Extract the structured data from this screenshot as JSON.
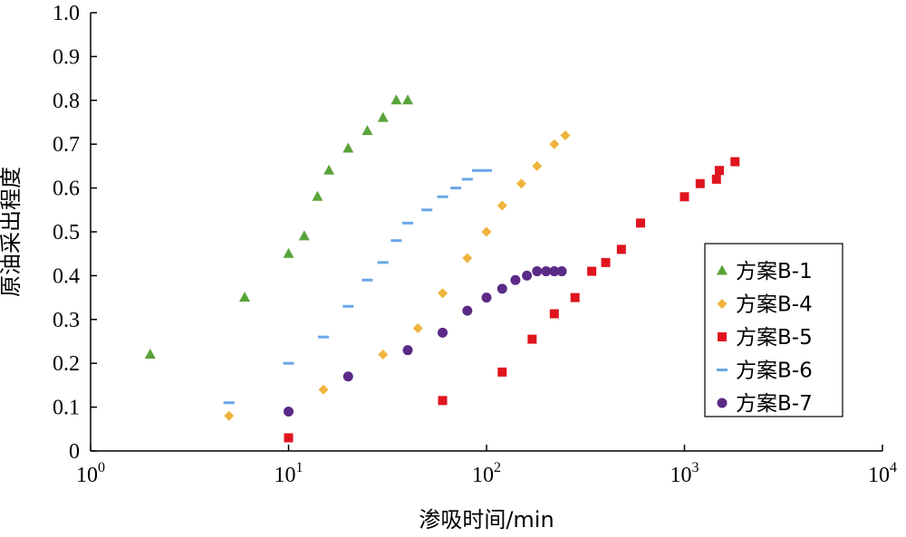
{
  "chart_data": {
    "type": "scatter",
    "xlabel": "渗吸时间/min",
    "ylabel": "原油采出程度",
    "x_scale": "log",
    "xlim": [
      1,
      10000
    ],
    "ylim": [
      0,
      1.0
    ],
    "grid": false,
    "legend_position": "right",
    "x_ticks": [
      {
        "value": 1,
        "base": "10",
        "exp": "0"
      },
      {
        "value": 10,
        "base": "10",
        "exp": "1"
      },
      {
        "value": 100,
        "base": "10",
        "exp": "2"
      },
      {
        "value": 1000,
        "base": "10",
        "exp": "3"
      },
      {
        "value": 10000,
        "base": "10",
        "exp": "4"
      }
    ],
    "y_ticks": [
      {
        "value": 0,
        "label": "0"
      },
      {
        "value": 0.1,
        "label": "0.1"
      },
      {
        "value": 0.2,
        "label": "0.2"
      },
      {
        "value": 0.3,
        "label": "0.3"
      },
      {
        "value": 0.4,
        "label": "0.4"
      },
      {
        "value": 0.5,
        "label": "0.5"
      },
      {
        "value": 0.6,
        "label": "0.6"
      },
      {
        "value": 0.7,
        "label": "0.7"
      },
      {
        "value": 0.8,
        "label": "0.8"
      },
      {
        "value": 0.9,
        "label": "0.9"
      },
      {
        "value": 1.0,
        "label": "1.0"
      }
    ],
    "series": [
      {
        "name": "方案B-1",
        "marker": "triangle",
        "color": "#5aa33a",
        "points": [
          [
            2,
            0.22
          ],
          [
            6,
            0.35
          ],
          [
            10,
            0.45
          ],
          [
            12,
            0.49
          ],
          [
            14,
            0.58
          ],
          [
            16,
            0.64
          ],
          [
            20,
            0.69
          ],
          [
            25,
            0.73
          ],
          [
            30,
            0.76
          ],
          [
            35,
            0.8
          ],
          [
            40,
            0.8
          ]
        ]
      },
      {
        "name": "方案B-4",
        "marker": "diamond",
        "color": "#f0b43c",
        "points": [
          [
            5,
            0.08
          ],
          [
            15,
            0.14
          ],
          [
            30,
            0.22
          ],
          [
            45,
            0.28
          ],
          [
            60,
            0.36
          ],
          [
            80,
            0.44
          ],
          [
            100,
            0.5
          ],
          [
            120,
            0.56
          ],
          [
            150,
            0.61
          ],
          [
            180,
            0.65
          ],
          [
            220,
            0.7
          ],
          [
            250,
            0.72
          ]
        ]
      },
      {
        "name": "方案B-5",
        "marker": "square",
        "color": "#e0141e",
        "points": [
          [
            10,
            0.03
          ],
          [
            60,
            0.115
          ],
          [
            120,
            0.18
          ],
          [
            170,
            0.255
          ],
          [
            220,
            0.313
          ],
          [
            280,
            0.35
          ],
          [
            340,
            0.41
          ],
          [
            400,
            0.43
          ],
          [
            480,
            0.46
          ],
          [
            600,
            0.52
          ],
          [
            1000,
            0.58
          ],
          [
            1200,
            0.61
          ],
          [
            1450,
            0.62
          ],
          [
            1500,
            0.64
          ],
          [
            1800,
            0.66
          ]
        ]
      },
      {
        "name": "方案B-6",
        "marker": "dash",
        "color": "#6aa6e6",
        "points": [
          [
            5,
            0.11
          ],
          [
            10,
            0.2
          ],
          [
            15,
            0.26
          ],
          [
            20,
            0.33
          ],
          [
            25,
            0.39
          ],
          [
            30,
            0.43
          ],
          [
            35,
            0.48
          ],
          [
            40,
            0.52
          ],
          [
            50,
            0.55
          ],
          [
            60,
            0.58
          ],
          [
            70,
            0.6
          ],
          [
            80,
            0.62
          ],
          [
            90,
            0.64
          ],
          [
            100,
            0.64
          ]
        ]
      },
      {
        "name": "方案B-7",
        "marker": "circle",
        "color": "#5b2a86",
        "points": [
          [
            10,
            0.09
          ],
          [
            20,
            0.17
          ],
          [
            40,
            0.23
          ],
          [
            60,
            0.27
          ],
          [
            80,
            0.32
          ],
          [
            100,
            0.35
          ],
          [
            120,
            0.37
          ],
          [
            140,
            0.39
          ],
          [
            160,
            0.4
          ],
          [
            180,
            0.41
          ],
          [
            200,
            0.41
          ],
          [
            220,
            0.41
          ],
          [
            240,
            0.41
          ]
        ]
      }
    ]
  }
}
